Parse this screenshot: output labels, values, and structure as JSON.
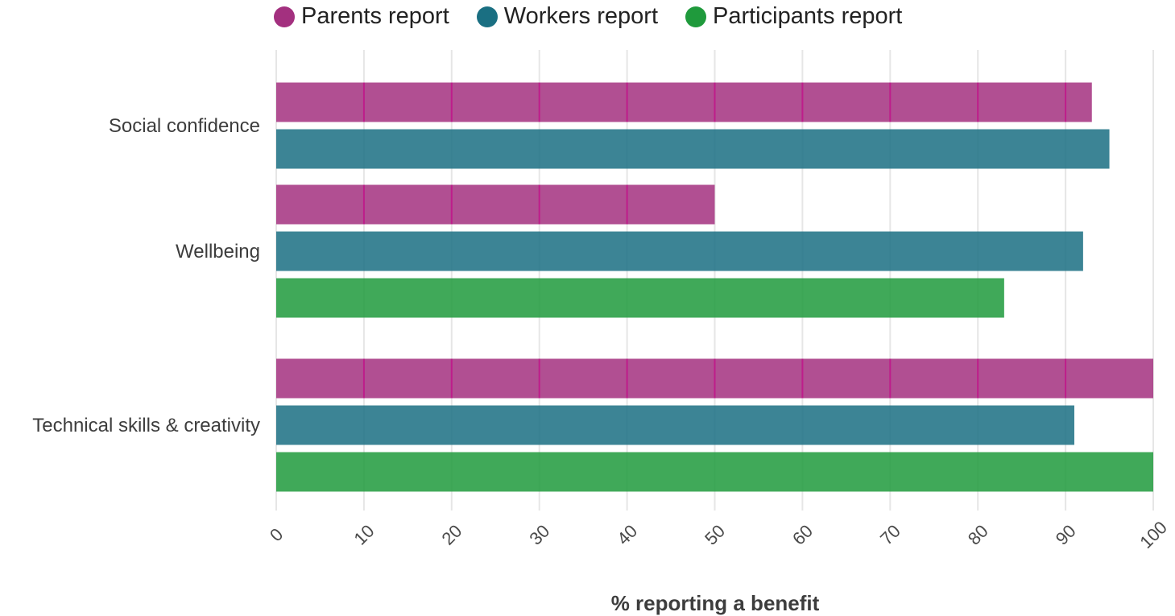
{
  "chart_data": {
    "type": "bar",
    "orientation": "horizontal",
    "categories": [
      "Social confidence",
      "Wellbeing",
      "Technical skills & creativity"
    ],
    "series": [
      {
        "name": "Parents report",
        "color": "#a3307f",
        "values": [
          93,
          50,
          100
        ]
      },
      {
        "name": "Workers report",
        "color": "#1a6f82",
        "values": [
          95,
          92,
          91
        ]
      },
      {
        "name": "Participants report",
        "color": "#1f9a3c",
        "values": [
          null,
          83,
          100
        ]
      }
    ],
    "xlabel": "% reporting a benefit",
    "ylabel": "",
    "xlim": [
      0,
      100
    ],
    "xticks": [
      "0",
      "10",
      "20",
      "30",
      "40",
      "50",
      "60",
      "70",
      "80",
      "90",
      "100"
    ],
    "grid": true,
    "legend_position": "top"
  }
}
